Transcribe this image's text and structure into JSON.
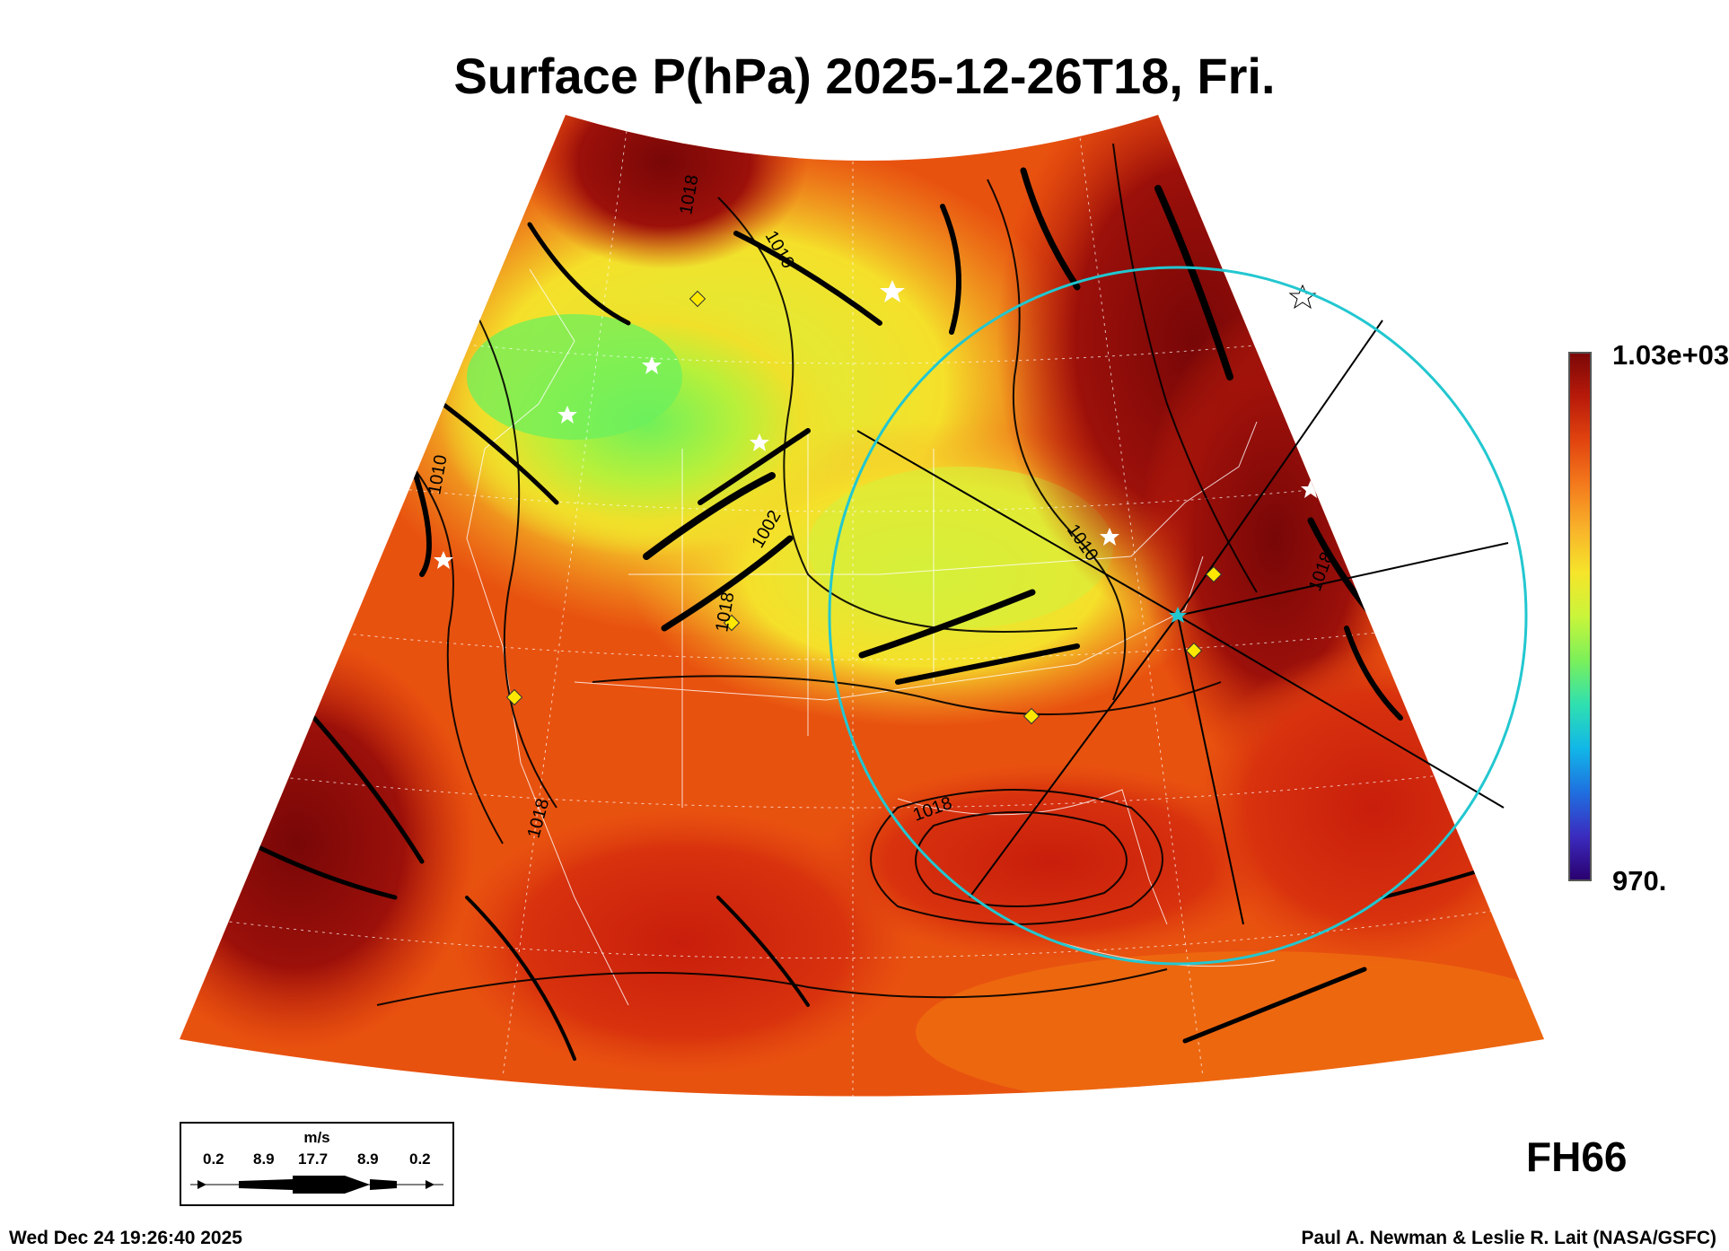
{
  "title": "Surface P(hPa) 2025-12-26T18, Fri.",
  "colorbar": {
    "max_label": "1.03e+03",
    "min_label": "970.",
    "stops": [
      "#2a006e",
      "#3b2bbf",
      "#1f6fe0",
      "#11b7e8",
      "#2fe0b0",
      "#7bf05a",
      "#c9f53a",
      "#f6e52a",
      "#f8b22a",
      "#f47a1c",
      "#e2440f",
      "#b81a0a",
      "#7a0707"
    ]
  },
  "contour_labels": [
    "1018",
    "1010",
    "1010",
    "1002",
    "1010",
    "1018",
    "1018",
    "1018",
    "1018"
  ],
  "wind_legend": {
    "unit": "m/s",
    "speeds": [
      "0.2",
      "8.9",
      "17.7",
      "8.9",
      "0.2"
    ]
  },
  "forecast_hour": "FH66",
  "footer": {
    "timestamp": "Wed Dec 24 19:26:40 2025",
    "credit": "Paul A. Newman & Leslie R. Lait (NASA/GSFC)"
  },
  "colors": {
    "ring": "#22c7d0",
    "marker": "#ffe800",
    "contour": "#000000",
    "border": "#ffffff"
  }
}
